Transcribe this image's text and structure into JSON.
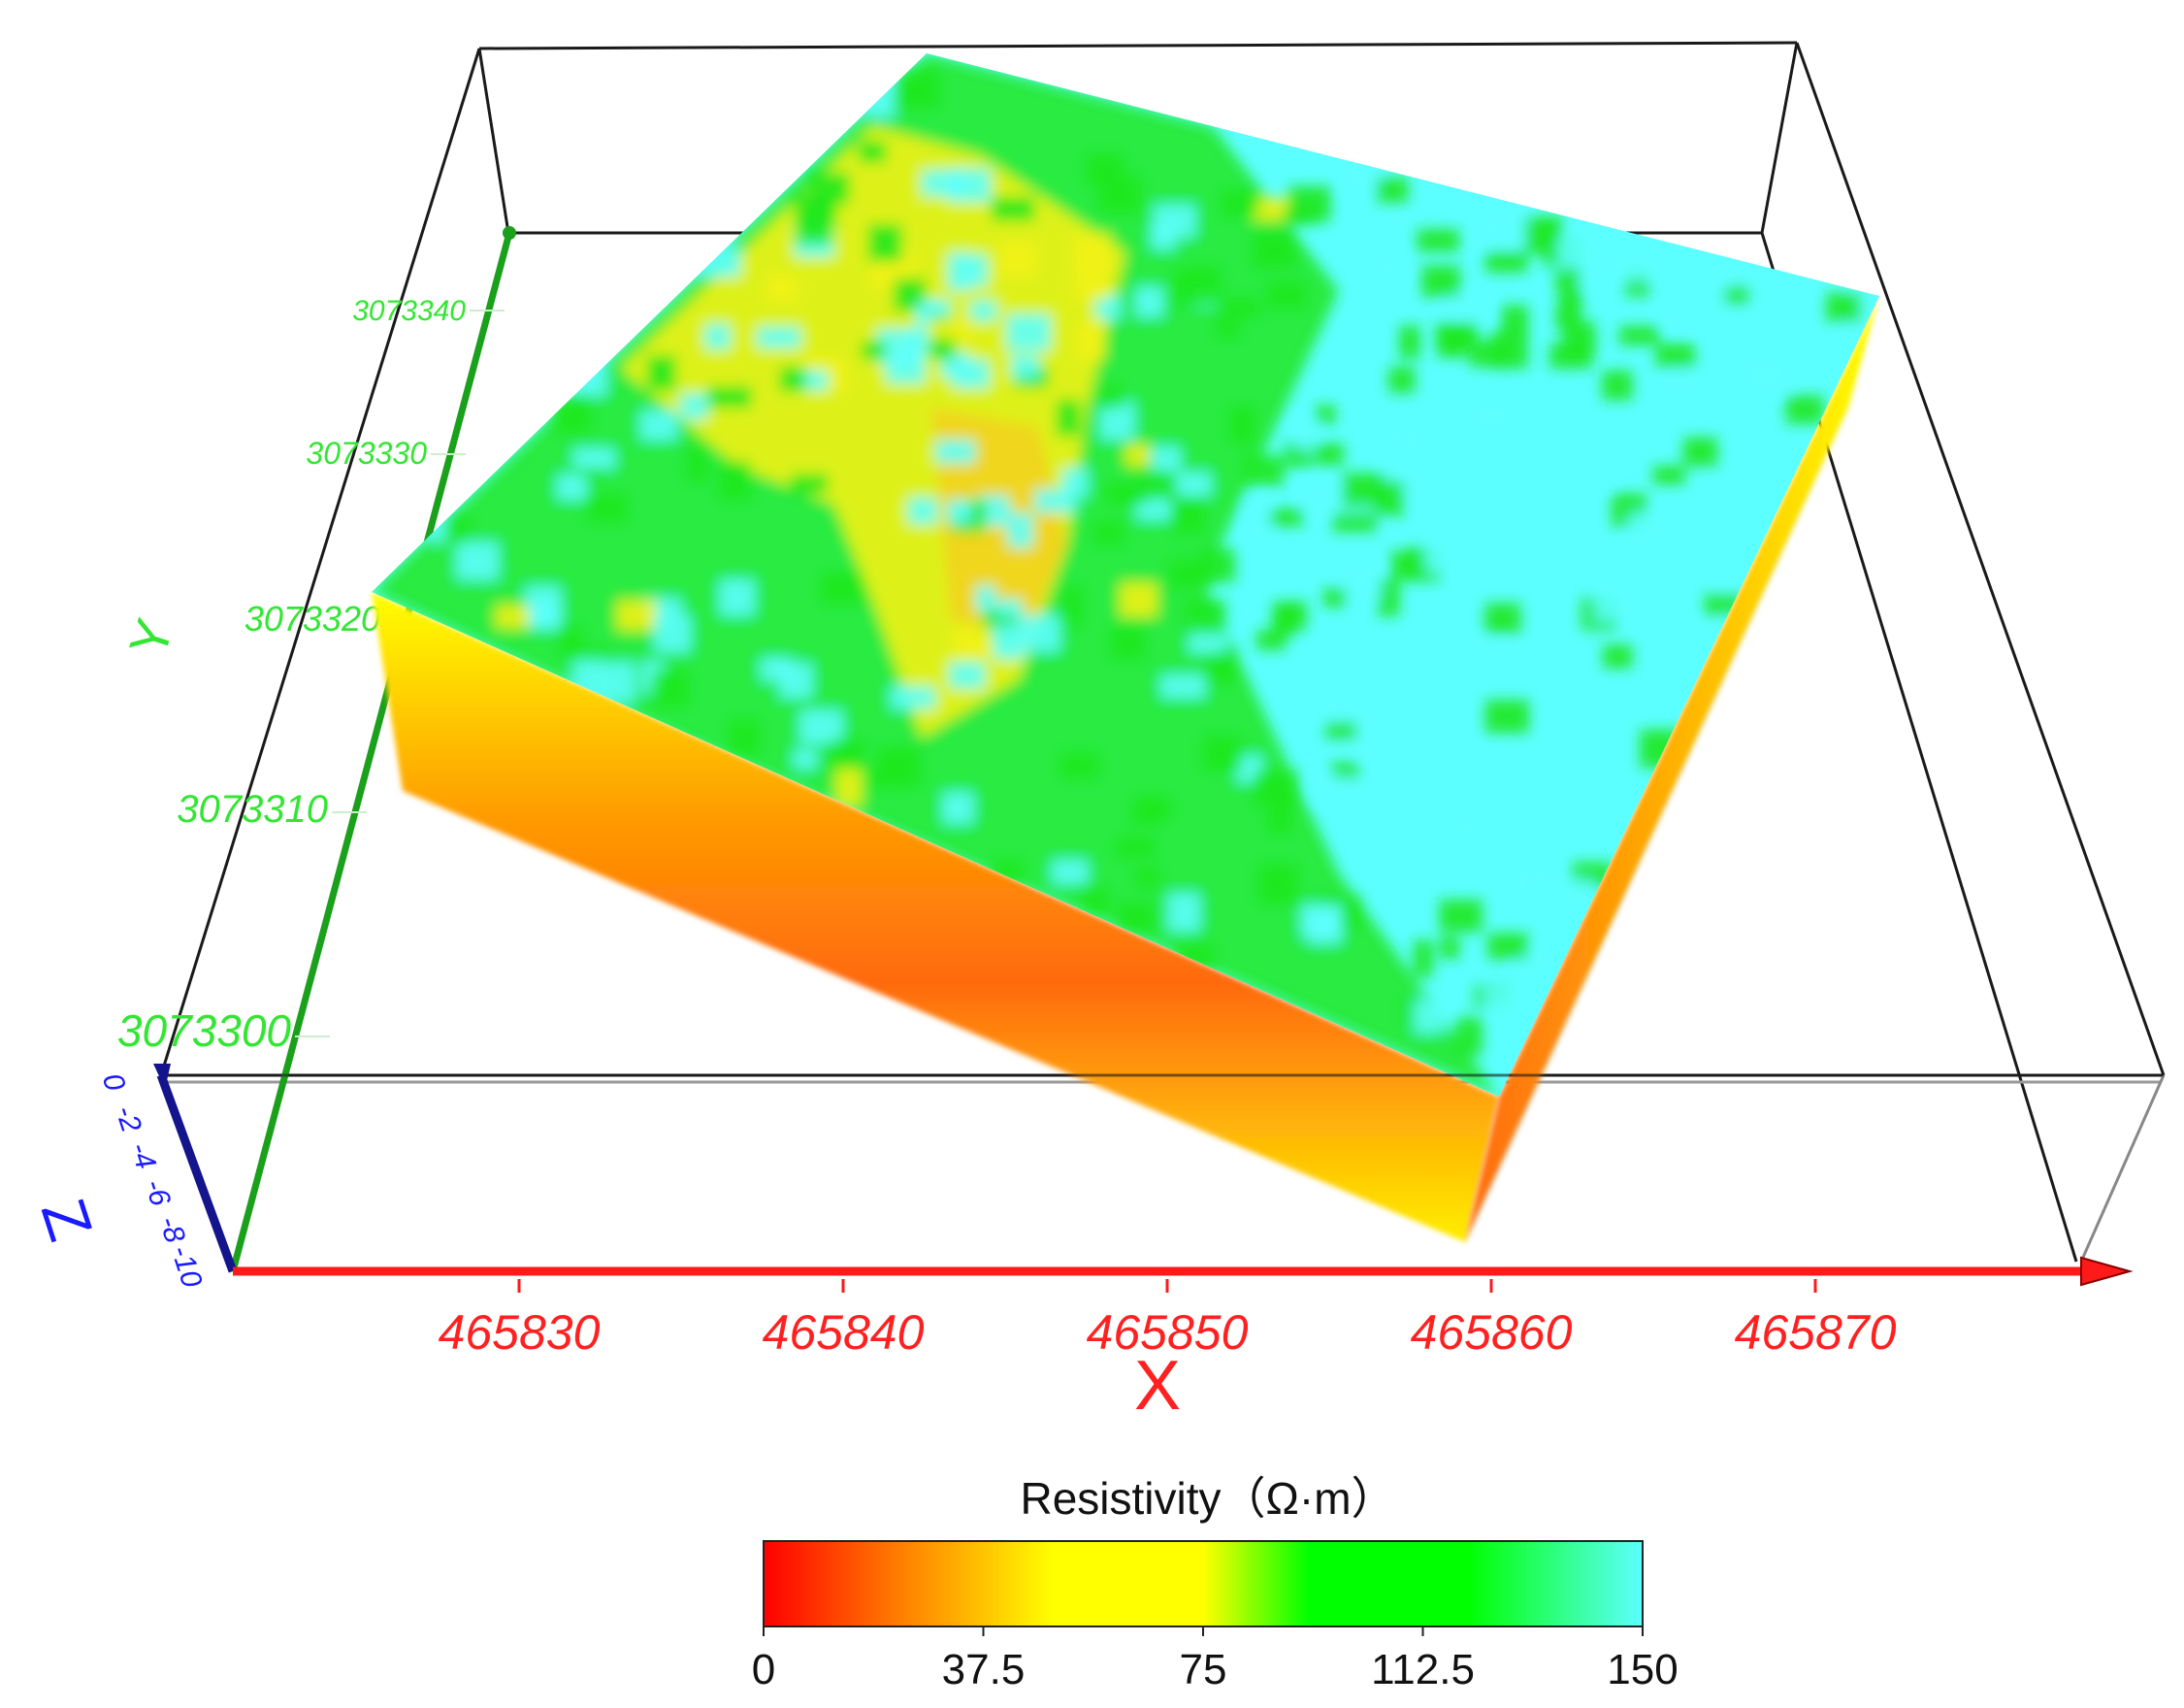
{
  "chart_data": {
    "type": "heatmap",
    "subtype": "3d-block-volume",
    "title": "",
    "x_axis": {
      "label": "X",
      "ticks": [
        "465830",
        "465840",
        "465850",
        "465860",
        "465870"
      ],
      "color": "#ff2020"
    },
    "y_axis": {
      "label": "Y",
      "ticks": [
        "3073300",
        "3073310",
        "3073320",
        "3073330",
        "3073340"
      ],
      "color": "#33e633"
    },
    "z_axis": {
      "label": "Z",
      "ticks": [
        "0",
        "-2",
        "-4",
        "-6",
        "-8",
        "-10"
      ],
      "color": "#1a1aff"
    },
    "colorbar": {
      "title": "Resistivity（Ω·m）",
      "min": 0,
      "max": 150,
      "ticks": [
        "0",
        "37.5",
        "75",
        "112.5",
        "150"
      ],
      "colors": [
        "#ff0000",
        "#ff7a00",
        "#ffff00",
        "#00ff00",
        "#5cffff"
      ]
    },
    "surface_pattern": {
      "description_values_range": [
        0,
        150
      ],
      "low_resistivity_zone": "west-central strip",
      "high_resistivity_zone": "east half"
    }
  }
}
